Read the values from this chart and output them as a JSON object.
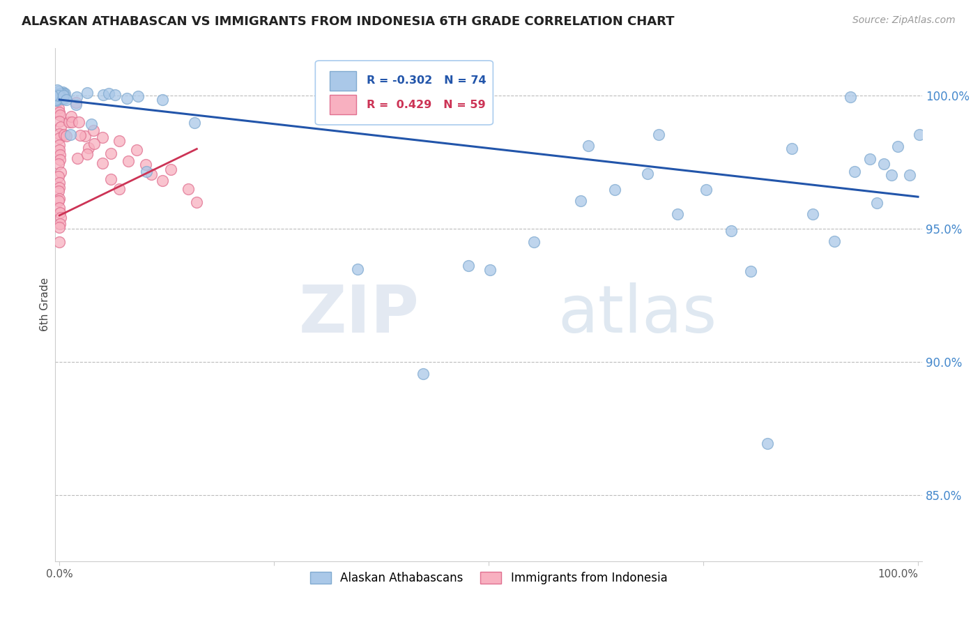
{
  "title": "ALASKAN ATHABASCAN VS IMMIGRANTS FROM INDONESIA 6TH GRADE CORRELATION CHART",
  "source": "Source: ZipAtlas.com",
  "ylabel": "6th Grade",
  "ytick_labels": [
    "85.0%",
    "90.0%",
    "95.0%",
    "100.0%"
  ],
  "ytick_values": [
    0.85,
    0.9,
    0.95,
    1.0
  ],
  "ylim": [
    0.825,
    1.018
  ],
  "xlim": [
    -0.005,
    1.005
  ],
  "blue_R": -0.302,
  "blue_N": 74,
  "pink_R": 0.429,
  "pink_N": 59,
  "blue_color": "#aac8e8",
  "blue_edge": "#80aad0",
  "pink_color": "#f8b0c0",
  "pink_edge": "#e07090",
  "trend_blue": "#2255aa",
  "trend_pink": "#cc3355",
  "legend_label_blue": "Alaskan Athabascans",
  "legend_label_pink": "Immigrants from Indonesia",
  "watermark_zip": "ZIP",
  "watermark_atlas": "atlas",
  "blue_x": [
    0.0,
    0.0,
    0.0,
    0.0,
    0.0,
    0.0,
    0.0,
    0.0,
    0.0,
    0.0,
    0.0,
    0.0,
    0.0,
    0.0,
    0.0,
    0.0,
    0.0,
    0.0,
    0.0,
    0.0,
    0.0,
    0.0,
    0.0,
    0.0,
    0.0,
    0.0,
    0.0,
    0.0,
    0.0,
    0.0,
    0.0,
    0.0,
    0.01,
    0.01,
    0.01,
    0.02,
    0.02,
    0.03,
    0.04,
    0.05,
    0.06,
    0.07,
    0.08,
    0.09,
    0.1,
    0.12,
    0.15,
    0.5,
    0.55,
    0.6,
    0.62,
    0.65,
    0.68,
    0.7,
    0.72,
    0.75,
    0.78,
    0.8,
    0.82,
    0.85,
    0.88,
    0.9,
    0.92,
    0.93,
    0.94,
    0.95,
    0.96,
    0.97,
    0.98,
    0.99,
    1.0,
    0.35,
    0.42,
    0.48
  ],
  "blue_y": [
    1.0,
    1.0,
    1.0,
    1.0,
    1.0,
    1.0,
    1.0,
    1.0,
    1.0,
    1.0,
    1.0,
    1.0,
    1.0,
    1.0,
    1.0,
    1.0,
    1.0,
    1.0,
    1.0,
    1.0,
    1.0,
    1.0,
    1.0,
    1.0,
    1.0,
    1.0,
    1.0,
    1.0,
    1.0,
    1.0,
    1.0,
    1.0,
    1.0,
    1.0,
    0.985,
    0.998,
    1.0,
    1.0,
    0.99,
    1.0,
    1.0,
    1.0,
    1.0,
    1.0,
    0.97,
    1.0,
    0.99,
    0.935,
    0.945,
    0.96,
    0.98,
    0.965,
    0.97,
    0.985,
    0.955,
    0.965,
    0.95,
    0.935,
    0.87,
    0.98,
    0.955,
    0.945,
    1.0,
    0.97,
    0.975,
    0.96,
    0.975,
    0.97,
    0.98,
    0.97,
    0.985,
    0.935,
    0.895,
    0.935
  ],
  "pink_x": [
    0.0,
    0.0,
    0.0,
    0.0,
    0.0,
    0.0,
    0.0,
    0.0,
    0.0,
    0.0,
    0.0,
    0.0,
    0.0,
    0.0,
    0.0,
    0.0,
    0.0,
    0.0,
    0.0,
    0.0,
    0.0,
    0.0,
    0.0,
    0.0,
    0.0,
    0.0,
    0.0,
    0.0,
    0.0,
    0.0,
    0.0,
    0.005,
    0.008,
    0.01,
    0.012,
    0.015,
    0.02,
    0.025,
    0.03,
    0.035,
    0.04,
    0.05,
    0.06,
    0.07,
    0.08,
    0.09,
    0.1,
    0.11,
    0.12,
    0.13,
    0.15,
    0.16,
    0.02,
    0.025,
    0.03,
    0.04,
    0.05,
    0.06,
    0.07
  ],
  "pink_y": [
    1.0,
    1.0,
    1.0,
    1.0,
    1.0,
    0.998,
    0.996,
    0.994,
    0.992,
    0.99,
    0.988,
    0.986,
    0.984,
    0.982,
    0.98,
    0.978,
    0.976,
    0.974,
    0.972,
    0.97,
    0.968,
    0.966,
    0.964,
    0.962,
    0.96,
    0.958,
    0.956,
    0.954,
    0.952,
    0.95,
    0.945,
    0.985,
    0.985,
    0.99,
    0.992,
    0.99,
    0.998,
    0.99,
    0.985,
    0.98,
    0.988,
    0.985,
    0.978,
    0.982,
    0.975,
    0.98,
    0.975,
    0.97,
    0.968,
    0.972,
    0.965,
    0.96,
    0.975,
    0.985,
    0.978,
    0.982,
    0.975,
    0.968,
    0.965
  ],
  "blue_trend_x": [
    0.0,
    1.0
  ],
  "blue_trend_y": [
    0.9985,
    0.962
  ],
  "pink_trend_x": [
    0.0,
    0.16
  ],
  "pink_trend_y": [
    0.955,
    0.98
  ]
}
